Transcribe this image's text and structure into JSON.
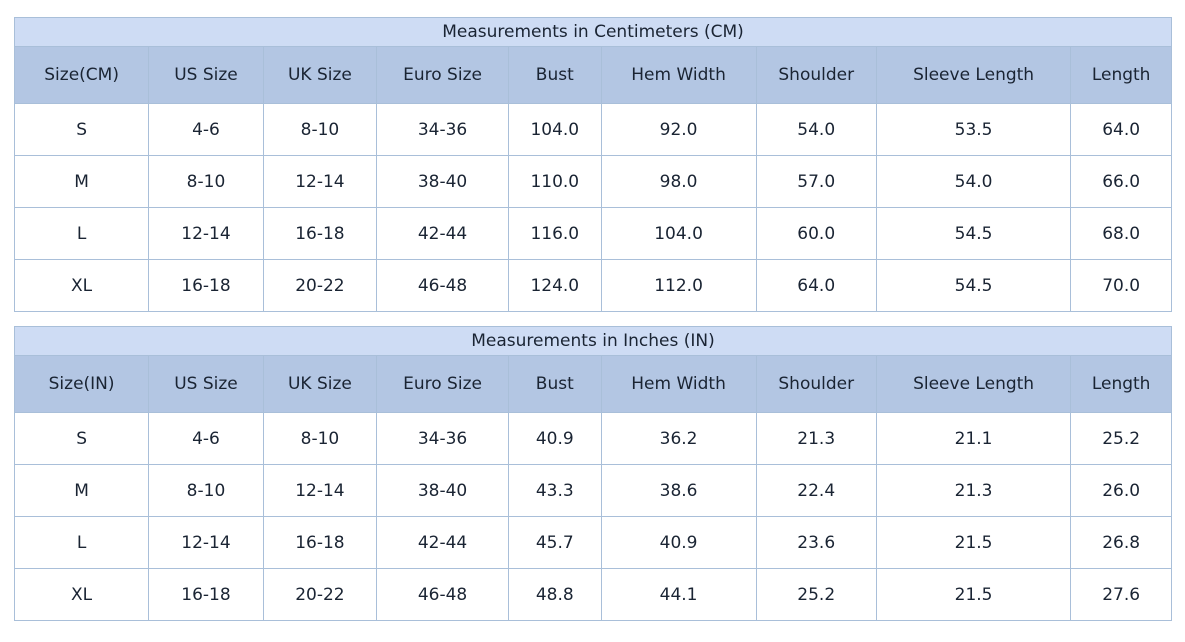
{
  "colors": {
    "title_row_bg": "#cedcf4",
    "header_row_bg": "#b3c6e3",
    "border": "#a9bfd9",
    "text": "#1a2433",
    "data_row_bg": "#ffffff",
    "page_bg": "#ffffff"
  },
  "chart_data": [
    {
      "type": "table",
      "title": "Measurements in Centimeters (CM)",
      "columns": [
        "Size(CM)",
        "US Size",
        "UK Size",
        "Euro Size",
        "Bust",
        "Hem Width",
        "Shoulder",
        "Sleeve Length",
        "Length"
      ],
      "rows": [
        [
          "S",
          "4-6",
          "8-10",
          "34-36",
          "104.0",
          "92.0",
          "54.0",
          "53.5",
          "64.0"
        ],
        [
          "M",
          "8-10",
          "12-14",
          "38-40",
          "110.0",
          "98.0",
          "57.0",
          "54.0",
          "66.0"
        ],
        [
          "L",
          "12-14",
          "16-18",
          "42-44",
          "116.0",
          "104.0",
          "60.0",
          "54.5",
          "68.0"
        ],
        [
          "XL",
          "16-18",
          "20-22",
          "46-48",
          "124.0",
          "112.0",
          "64.0",
          "54.5",
          "70.0"
        ]
      ]
    },
    {
      "type": "table",
      "title": "Measurements in Inches (IN)",
      "columns": [
        "Size(IN)",
        "US Size",
        "UK Size",
        "Euro Size",
        "Bust",
        "Hem Width",
        "Shoulder",
        "Sleeve Length",
        "Length"
      ],
      "rows": [
        [
          "S",
          "4-6",
          "8-10",
          "34-36",
          "40.9",
          "36.2",
          "21.3",
          "21.1",
          "25.2"
        ],
        [
          "M",
          "8-10",
          "12-14",
          "38-40",
          "43.3",
          "38.6",
          "22.4",
          "21.3",
          "26.0"
        ],
        [
          "L",
          "12-14",
          "16-18",
          "42-44",
          "45.7",
          "40.9",
          "23.6",
          "21.5",
          "26.8"
        ],
        [
          "XL",
          "16-18",
          "20-22",
          "46-48",
          "48.8",
          "44.1",
          "25.2",
          "21.5",
          "27.6"
        ]
      ]
    }
  ]
}
